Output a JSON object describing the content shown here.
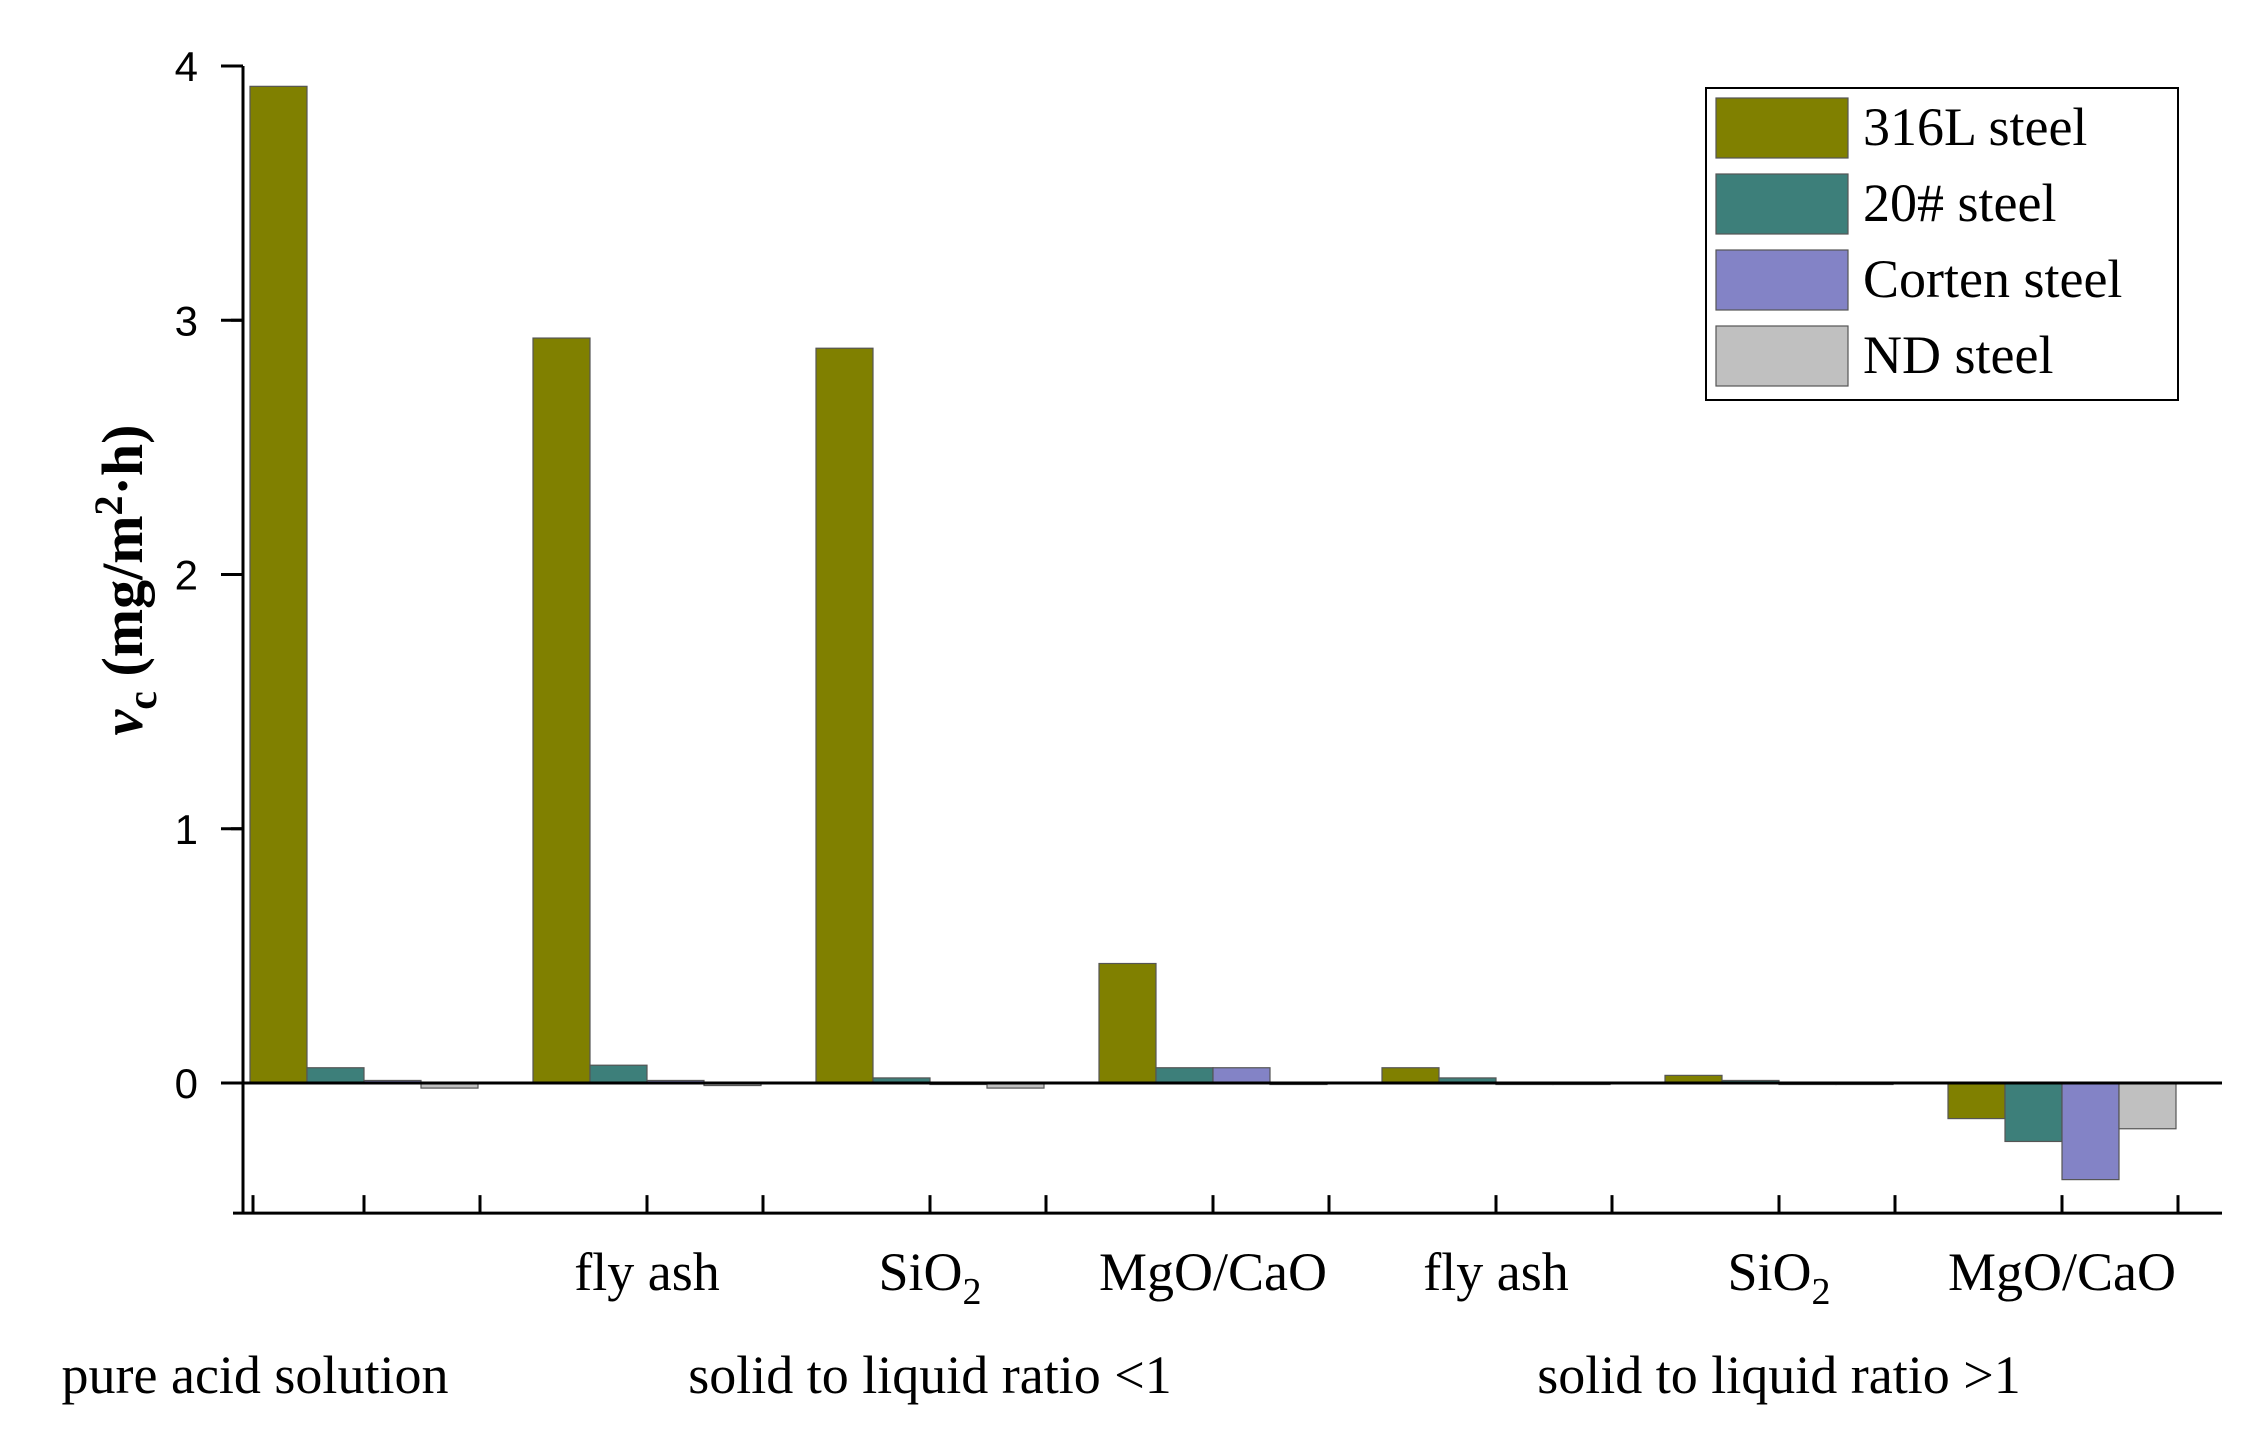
{
  "chart_data": {
    "type": "bar",
    "title": "",
    "ylabel": {
      "symbol": "v",
      "subscript": "c",
      "unit_prefix": "(mg/m",
      "unit_sup": "2",
      "unit_suffix": "·h)"
    },
    "xlabel": "",
    "ylim": [
      -0.5,
      4
    ],
    "yticks": [
      0,
      1,
      2,
      3,
      4
    ],
    "y_tick_labels": [
      "0",
      "1",
      "2",
      "3",
      "4"
    ],
    "categories": [
      {
        "name": "",
        "sub": ""
      },
      {
        "name": "fly ash",
        "sub": ""
      },
      {
        "name": "SiO",
        "sub": "2"
      },
      {
        "name": "MgO/CaO",
        "sub": ""
      },
      {
        "name": "fly ash",
        "sub": ""
      },
      {
        "name": "SiO",
        "sub": "2"
      },
      {
        "name": "MgO/CaO",
        "sub": ""
      }
    ],
    "groups": [
      {
        "label": "pure acid solution",
        "categories": [
          0
        ]
      },
      {
        "label": "solid to liquid ratio <1",
        "categories": [
          1,
          2,
          3
        ]
      },
      {
        "label": "solid to liquid ratio >1",
        "categories": [
          4,
          5,
          6
        ]
      }
    ],
    "series": [
      {
        "name": "316L steel",
        "color": "#808000",
        "values": [
          3.92,
          2.93,
          2.89,
          0.47,
          0.06,
          0.03,
          -0.14
        ]
      },
      {
        "name": "20# steel",
        "color": "#3d7f7a",
        "values": [
          0.06,
          0.07,
          0.02,
          0.06,
          0.02,
          0.01,
          -0.23
        ]
      },
      {
        "name": "Corten steel",
        "color": "#8383c6",
        "values": [
          0.01,
          0.01,
          0.0,
          0.06,
          0.0,
          0.0,
          -0.38
        ]
      },
      {
        "name": "ND steel",
        "color": "#c0c0c0",
        "values": [
          -0.02,
          -0.01,
          -0.02,
          0.0,
          0.0,
          0.0,
          -0.18
        ]
      }
    ],
    "legend_position": "top-right",
    "grid": false
  }
}
